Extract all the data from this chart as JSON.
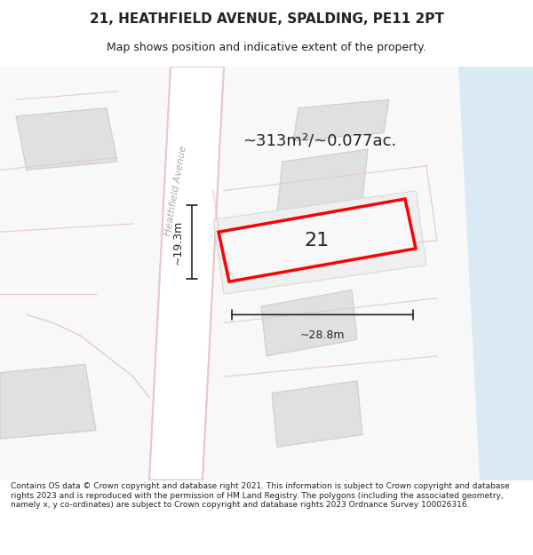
{
  "title": "21, HEATHFIELD AVENUE, SPALDING, PE11 2PT",
  "subtitle": "Map shows position and indicative extent of the property.",
  "footer": "Contains OS data © Crown copyright and database right 2021. This information is subject to Crown copyright and database rights 2023 and is reproduced with the permission of HM Land Registry. The polygons (including the associated geometry, namely x, y co-ordinates) are subject to Crown copyright and database rights 2023 Ordnance Survey 100026316.",
  "area_label": "~313m²/~0.077ac.",
  "property_number": "21",
  "dim_width": "~28.8m",
  "dim_height": "~19.3m",
  "street_label": "Heathfield Avenue",
  "background_color": "#ffffff",
  "map_bg": "#f8f8f8",
  "road_color": "#ffffff",
  "road_outline_color": "#e8c8c8",
  "building_fill": "#e0e0e0",
  "building_outline": "#cccccc",
  "water_color": "#c8dff0",
  "property_fill": "#f0f0f0",
  "property_outline": "#ff0000",
  "dim_line_color": "#222222",
  "text_color": "#222222",
  "street_text_color": "#aaaaaa"
}
